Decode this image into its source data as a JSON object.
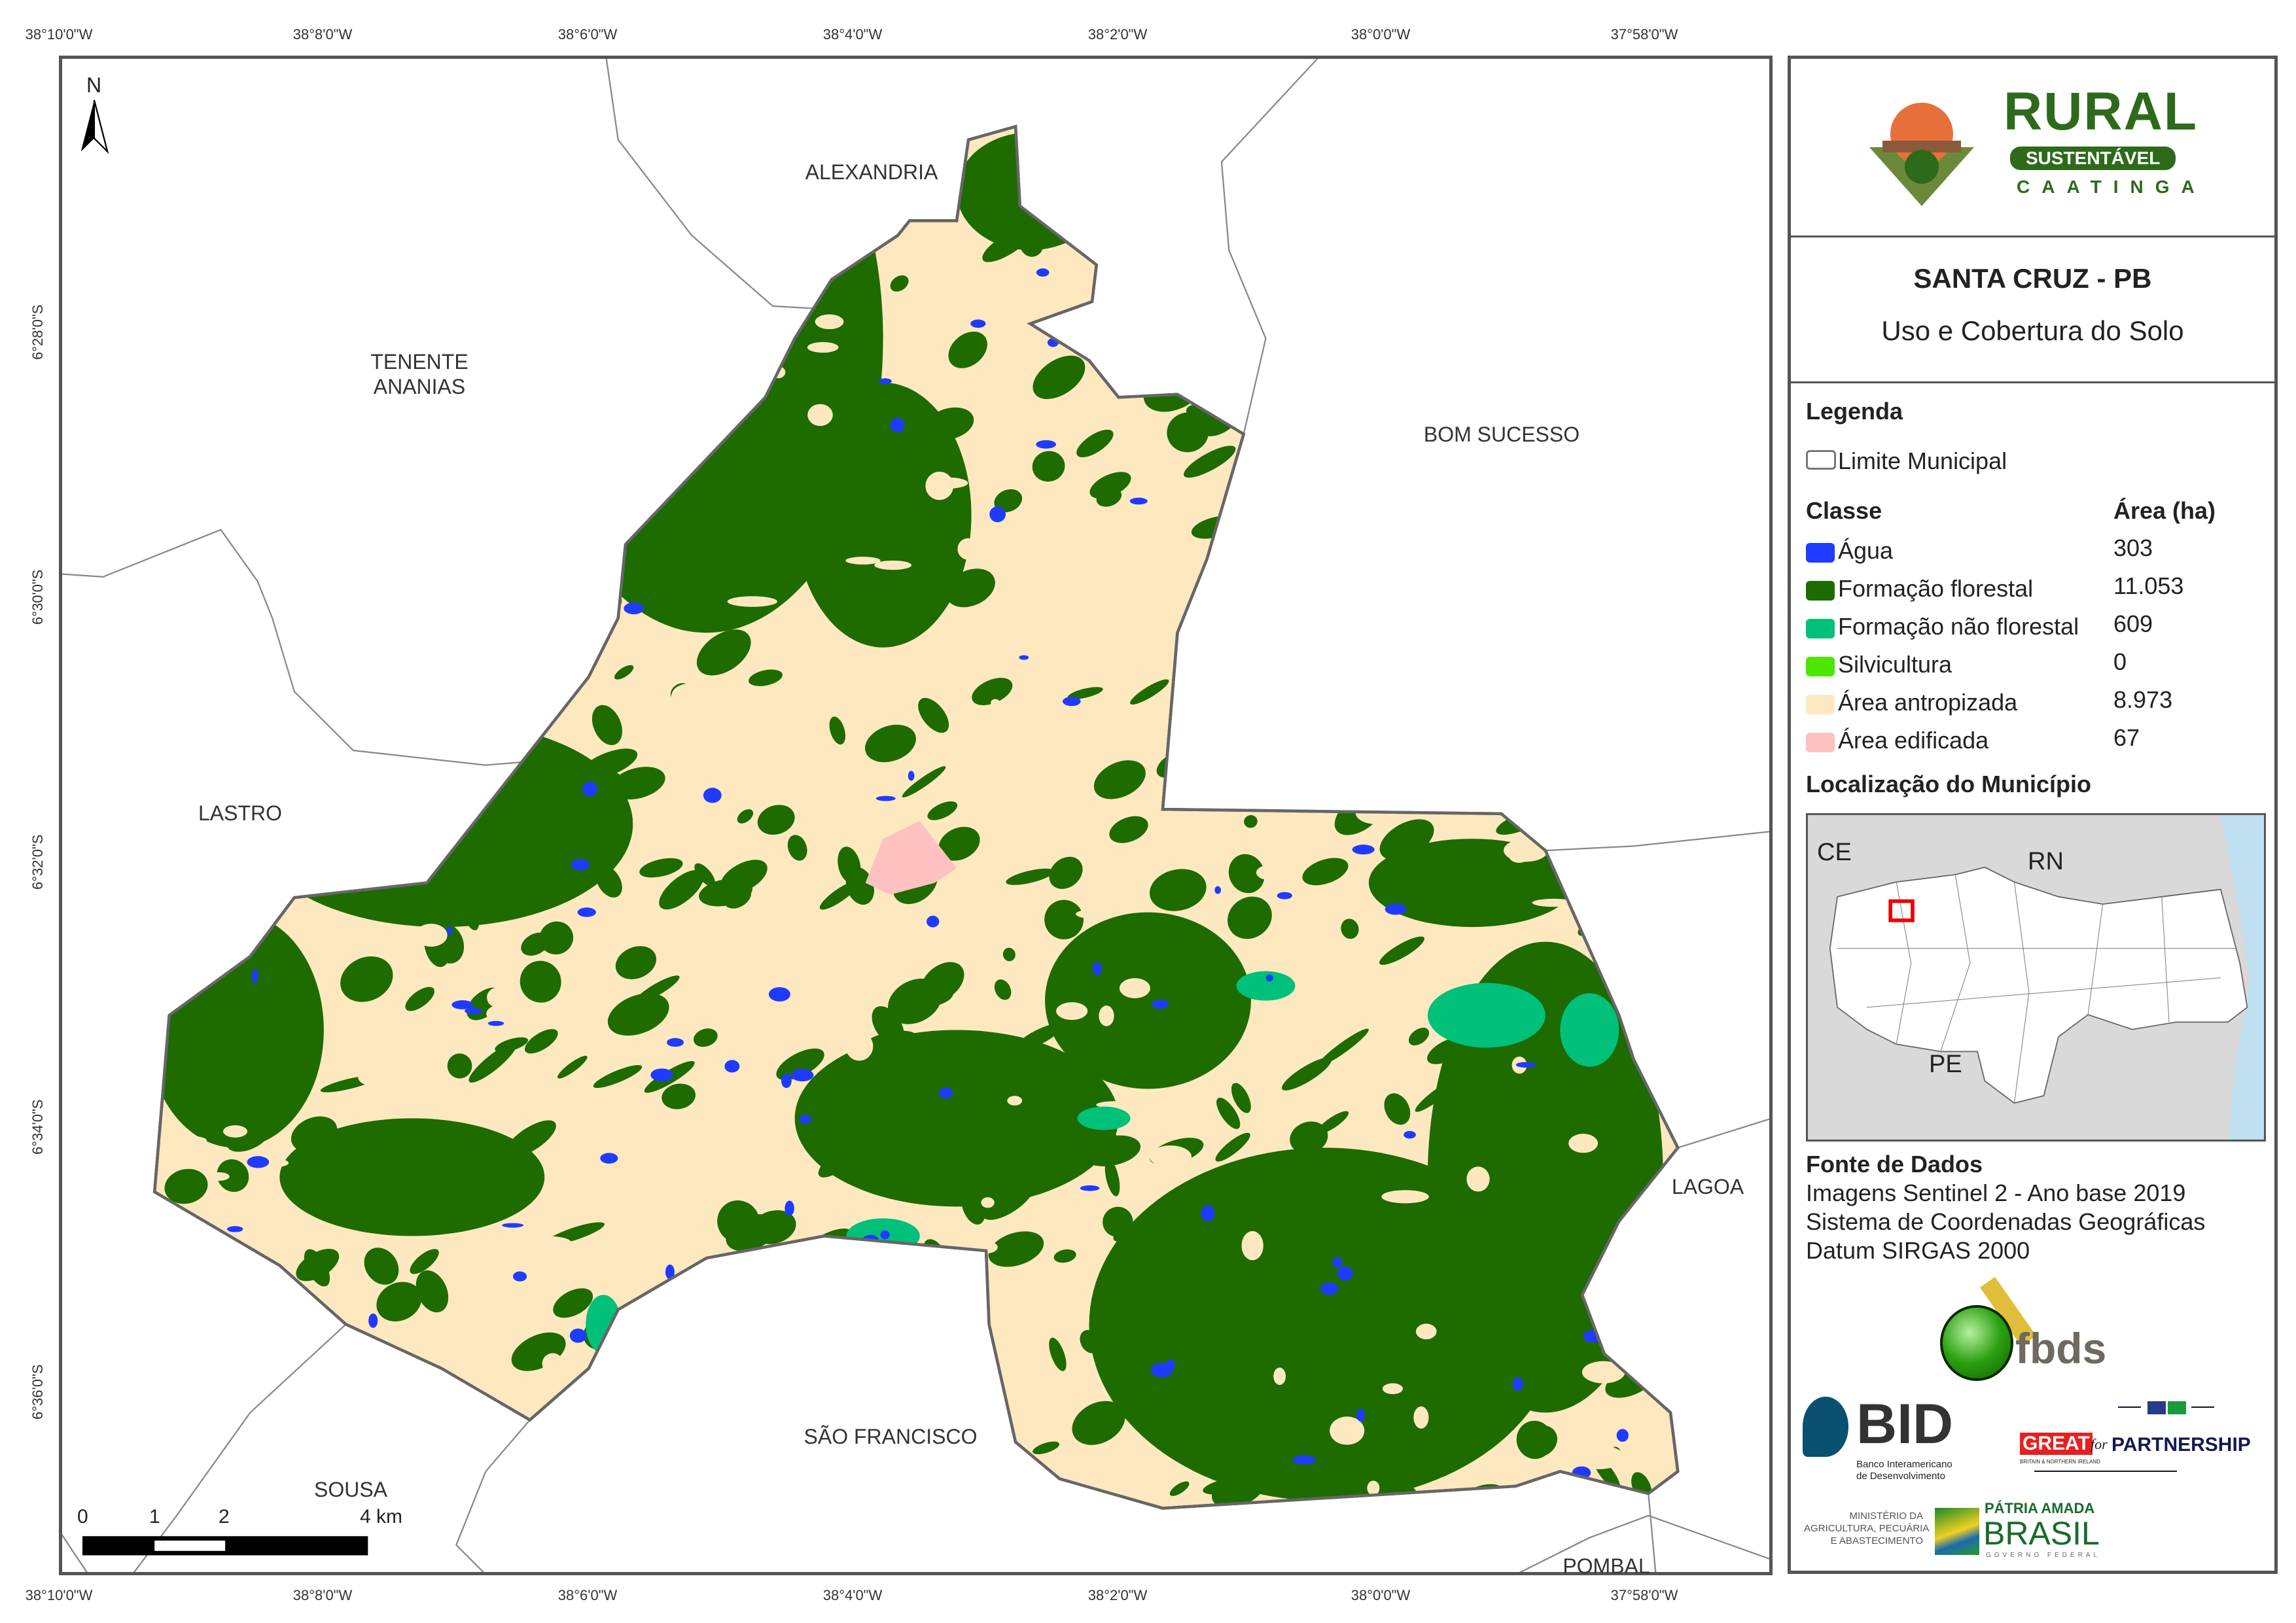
{
  "map": {
    "lon_ticks": [
      "38°10'0\"W",
      "38°8'0\"W",
      "38°6'0\"W",
      "38°4'0\"W",
      "38°2'0\"W",
      "38°0'0\"W",
      "37°58'0\"W"
    ],
    "lat_ticks": [
      "6°28'0\"S",
      "6°30'0\"S",
      "6°32'0\"S",
      "6°34'0\"S",
      "6°36'0\"S"
    ],
    "north_label": "N",
    "neighbors": {
      "alexandria": "ALEXANDRIA",
      "tenente_ananias": "TENENTE\nANANIAS",
      "bom_sucesso": "BOM SUCESSO",
      "lastro": "LASTRO",
      "lagoa": "LAGOA",
      "sao_francisco": "SÃO FRANCISCO",
      "sousa": "SOUSA",
      "pombal": "POMBAL"
    },
    "scale_bar": {
      "labels": [
        "0",
        "1",
        "2",
        "4 km"
      ]
    },
    "colors": {
      "water": "#1f3bff",
      "forest": "#1e6b00",
      "nonforest": "#00c07a",
      "silviculture": "#4de600",
      "anthropic": "#fde8c0",
      "built": "#ffc0c0",
      "boundary": "#777777"
    }
  },
  "panel": {
    "logo": {
      "title": "RURAL",
      "ribbon": "SUSTENTÁVEL",
      "sub": "CAATINGA"
    },
    "title": "SANTA CRUZ - PB",
    "subtitle": "Uso e Cobertura do Solo",
    "legend_heading": "Legenda",
    "boundary_label": "Limite Municipal",
    "class_header": "Classe",
    "area_header": "Área (ha)",
    "classes": [
      {
        "label": "Água",
        "area": "303",
        "color": "#1f3bff"
      },
      {
        "label": "Formação florestal",
        "area": "11.053",
        "color": "#1e6b00"
      },
      {
        "label": "Formação não florestal",
        "area": "609",
        "color": "#00c07a"
      },
      {
        "label": "Silvicultura",
        "area": "0",
        "color": "#4de600"
      },
      {
        "label": "Área antropizada",
        "area": "8.973",
        "color": "#fde8c0"
      },
      {
        "label": "Área edificada",
        "area": "67",
        "color": "#ffc0c0"
      }
    ],
    "location_heading": "Localização do Município",
    "locator": {
      "ce": "CE",
      "rn": "RN",
      "pe": "PE"
    },
    "source_heading": "Fonte de Dados",
    "source_lines": [
      "Imagens Sentinel 2 - Ano base 2019",
      "Sistema de Coordenadas Geográficas",
      "Datum SIRGAS 2000"
    ],
    "logos": {
      "fbds": "fbds",
      "bid": "BID",
      "bid_sub": "Banco Interamericano\nde Desenvolvimento",
      "great": "GREAT",
      "great_sub": "BRITAIN & NORTHERN IRELAND",
      "for": "for",
      "partnership": "PARTNERSHIP",
      "ministerio": "MINISTÉRIO DA\nAGRICULTURA, PECUÁRIA\nE ABASTECIMENTO",
      "patria": "PÁTRIA AMADA",
      "brasil": "BRASIL",
      "governo": "GOVERNO FEDERAL"
    }
  }
}
